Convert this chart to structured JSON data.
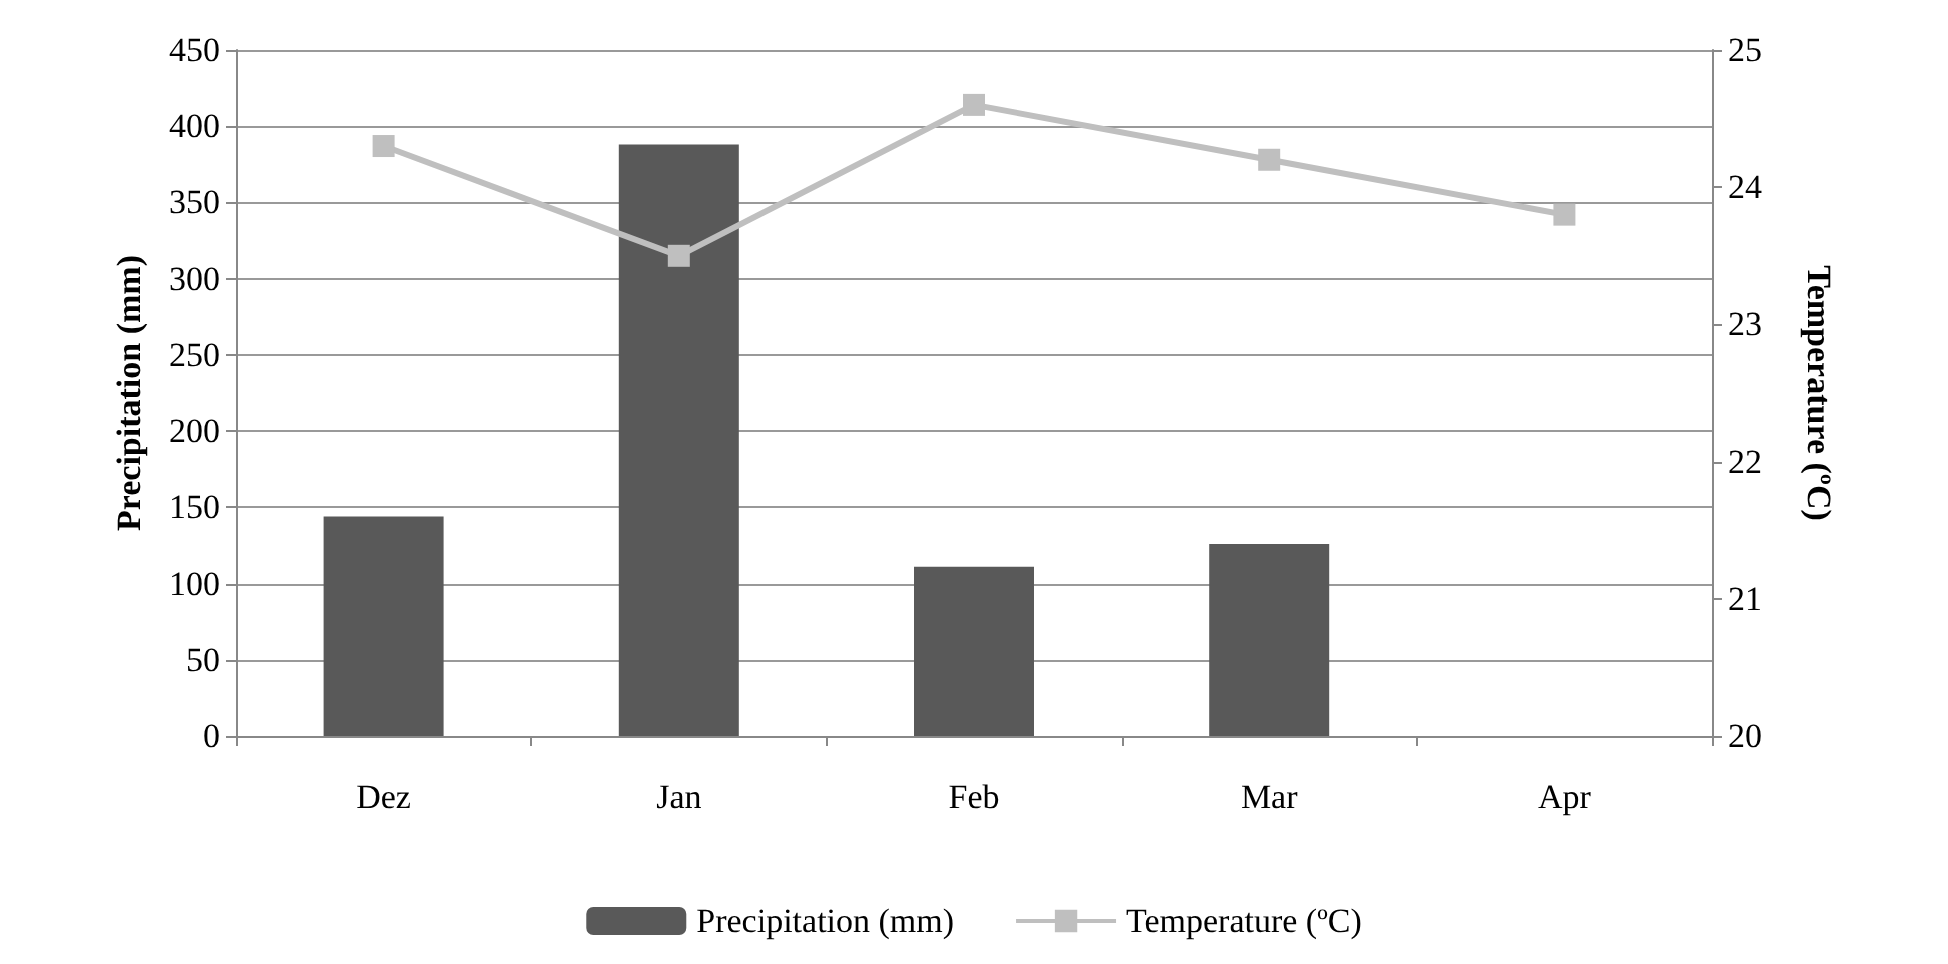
{
  "chart_data": {
    "type": "bar",
    "categories": [
      "Dez",
      "Jan",
      "Feb",
      "Mar",
      "Apr"
    ],
    "ylabel": "Precipitation (mm)",
    "y2label": "Temperature (ºC)",
    "series": [
      {
        "name": "Precipitation (mm)",
        "color": "#595959",
        "values": [
          144,
          388,
          111,
          126,
          0
        ]
      },
      {
        "name": "Temperature (ºC)",
        "type": "line",
        "axis": "y2",
        "color": "#bfbfbf",
        "marker": "square",
        "values": [
          24.3,
          23.5,
          24.6,
          24.2,
          23.8
        ]
      }
    ],
    "ylim": [
      0,
      450
    ],
    "yticks": [
      0,
      50,
      100,
      150,
      200,
      250,
      300,
      350,
      400,
      450
    ],
    "y2lim": [
      20,
      25
    ],
    "y2ticks": [
      20,
      21,
      22,
      23,
      24,
      25
    ],
    "grid": "y",
    "legend": "bottom"
  }
}
